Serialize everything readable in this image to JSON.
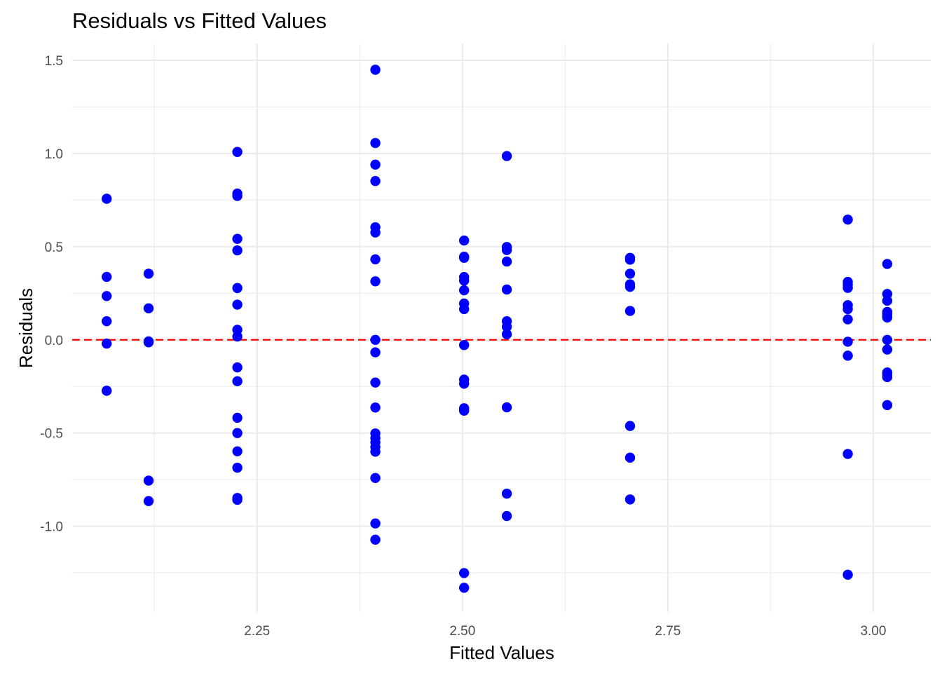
{
  "chart_data": {
    "type": "scatter",
    "title": "Residuals vs Fitted Values",
    "xlabel": "Fitted Values",
    "ylabel": "Residuals",
    "xlim": [
      2.025,
      3.07
    ],
    "ylim": [
      -1.46,
      1.59
    ],
    "x_ticks": [
      2.25,
      2.5,
      2.75,
      3.0
    ],
    "x_tick_labels": [
      "2.25",
      "2.50",
      "2.75",
      "3.00"
    ],
    "y_ticks": [
      -1.0,
      -0.5,
      0.0,
      0.5,
      1.0,
      1.5
    ],
    "y_tick_labels": [
      "-1.0",
      "-0.5",
      "0.0",
      "0.5",
      "1.0",
      "1.5"
    ],
    "grid": true,
    "point_color": "#0000ff",
    "reference_line": {
      "y": 0,
      "color": "#ff0000",
      "style": "dashed"
    },
    "series": [
      {
        "points": [
          [
            2.067,
            0.757
          ],
          [
            2.067,
            0.338
          ],
          [
            2.067,
            0.235
          ],
          [
            2.067,
            0.1
          ],
          [
            2.067,
            -0.02
          ],
          [
            2.067,
            -0.273
          ],
          [
            2.118,
            0.355
          ],
          [
            2.118,
            0.169
          ],
          [
            2.118,
            -0.008
          ],
          [
            2.118,
            -0.013
          ],
          [
            2.118,
            -0.755
          ],
          [
            2.118,
            -0.865
          ],
          [
            2.226,
            1.008
          ],
          [
            2.226,
            0.785
          ],
          [
            2.226,
            0.772
          ],
          [
            2.226,
            0.542
          ],
          [
            2.226,
            0.48
          ],
          [
            2.226,
            0.278
          ],
          [
            2.226,
            0.189
          ],
          [
            2.226,
            0.054
          ],
          [
            2.226,
            0.018
          ],
          [
            2.226,
            -0.148
          ],
          [
            2.226,
            -0.222
          ],
          [
            2.226,
            -0.418
          ],
          [
            2.226,
            -0.5
          ],
          [
            2.226,
            -0.598
          ],
          [
            2.226,
            -0.686
          ],
          [
            2.226,
            -0.848
          ],
          [
            2.226,
            -0.858
          ],
          [
            2.394,
            1.449
          ],
          [
            2.394,
            1.056
          ],
          [
            2.394,
            0.94
          ],
          [
            2.394,
            0.852
          ],
          [
            2.394,
            0.604
          ],
          [
            2.394,
            0.576
          ],
          [
            2.394,
            0.432
          ],
          [
            2.394,
            0.314
          ],
          [
            2.394,
            0.0
          ],
          [
            2.394,
            -0.067
          ],
          [
            2.394,
            -0.229
          ],
          [
            2.394,
            -0.363
          ],
          [
            2.394,
            -0.502
          ],
          [
            2.394,
            -0.527
          ],
          [
            2.394,
            -0.55
          ],
          [
            2.394,
            -0.575
          ],
          [
            2.394,
            -0.6
          ],
          [
            2.394,
            -0.741
          ],
          [
            2.394,
            -0.985
          ],
          [
            2.394,
            -1.072
          ],
          [
            2.502,
            0.533
          ],
          [
            2.502,
            0.446
          ],
          [
            2.502,
            0.44
          ],
          [
            2.502,
            0.337
          ],
          [
            2.502,
            0.318
          ],
          [
            2.502,
            0.266
          ],
          [
            2.502,
            0.195
          ],
          [
            2.502,
            0.165
          ],
          [
            2.502,
            -0.028
          ],
          [
            2.502,
            -0.213
          ],
          [
            2.502,
            -0.235
          ],
          [
            2.502,
            -0.367
          ],
          [
            2.502,
            -0.38
          ],
          [
            2.502,
            -1.251
          ],
          [
            2.502,
            -1.33
          ],
          [
            2.554,
            0.986
          ],
          [
            2.554,
            0.498
          ],
          [
            2.554,
            0.482
          ],
          [
            2.554,
            0.42
          ],
          [
            2.554,
            0.27
          ],
          [
            2.554,
            0.1
          ],
          [
            2.554,
            0.07
          ],
          [
            2.554,
            0.03
          ],
          [
            2.554,
            -0.362
          ],
          [
            2.554,
            -0.825
          ],
          [
            2.554,
            -0.945
          ],
          [
            2.704,
            0.44
          ],
          [
            2.704,
            0.43
          ],
          [
            2.704,
            0.355
          ],
          [
            2.704,
            0.298
          ],
          [
            2.704,
            0.285
          ],
          [
            2.704,
            0.155
          ],
          [
            2.704,
            -0.462
          ],
          [
            2.704,
            -0.632
          ],
          [
            2.704,
            -0.856
          ],
          [
            2.969,
            0.645
          ],
          [
            2.969,
            0.311
          ],
          [
            2.969,
            0.295
          ],
          [
            2.969,
            0.279
          ],
          [
            2.969,
            0.186
          ],
          [
            2.969,
            0.165
          ],
          [
            2.969,
            0.11
          ],
          [
            2.969,
            -0.01
          ],
          [
            2.969,
            -0.085
          ],
          [
            2.969,
            -0.612
          ],
          [
            2.969,
            -1.26
          ],
          [
            3.017,
            0.407
          ],
          [
            3.017,
            0.246
          ],
          [
            3.017,
            0.21
          ],
          [
            3.017,
            0.15
          ],
          [
            3.017,
            0.14
          ],
          [
            3.017,
            0.13
          ],
          [
            3.017,
            0.12
          ],
          [
            3.017,
            0.0
          ],
          [
            3.017,
            -0.052
          ],
          [
            3.017,
            -0.175
          ],
          [
            3.017,
            -0.186
          ],
          [
            3.017,
            -0.2
          ],
          [
            3.017,
            -0.35
          ]
        ]
      }
    ]
  }
}
